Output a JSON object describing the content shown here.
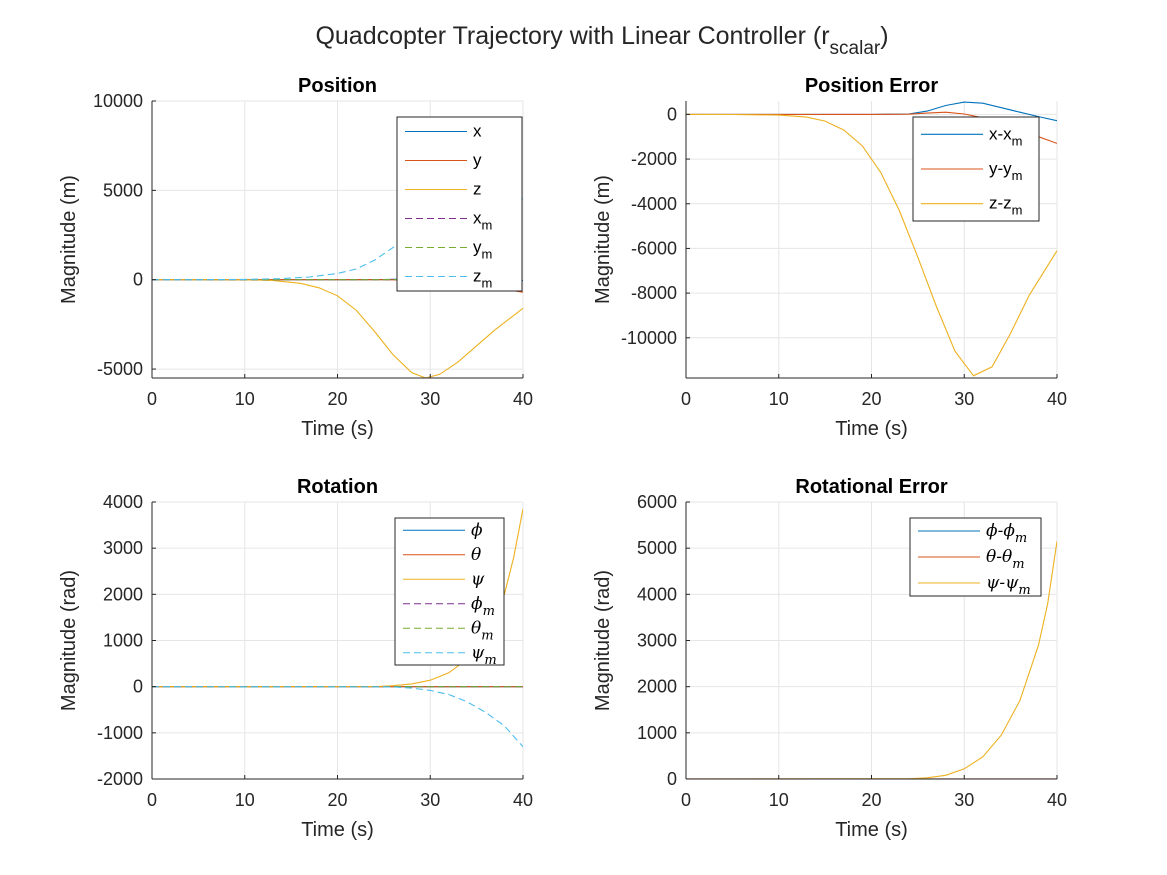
{
  "figure": {
    "title_main": "Quadcopter Trajectory with Linear Controller (r",
    "title_sub": "scalar",
    "title_close": ")"
  },
  "colors": {
    "blue": "#0072BD",
    "orange": "#D95319",
    "yellow": "#EDB120",
    "purple": "#7E2F8E",
    "green": "#77AC30",
    "cyan": "#4DBEEE"
  },
  "chart_data": [
    {
      "type": "line",
      "title": "Position",
      "xlabel": "Time (s)",
      "ylabel": "Magnitude (m)",
      "xlim": [
        0,
        40
      ],
      "ylim": [
        -5500,
        10000
      ],
      "xticks": [
        0,
        10,
        20,
        30,
        40
      ],
      "yticks": [
        -5000,
        0,
        5000,
        10000
      ],
      "grid": true,
      "legend_position": "top-right",
      "series": [
        {
          "name": "x",
          "color": "blue",
          "dash": false,
          "x": [
            0,
            20,
            25,
            27,
            29,
            31,
            33,
            35,
            37,
            40
          ],
          "y": [
            0,
            0,
            5,
            40,
            120,
            200,
            240,
            220,
            150,
            -50
          ]
        },
        {
          "name": "y",
          "color": "orange",
          "dash": false,
          "x": [
            0,
            20,
            25,
            28,
            31,
            34,
            37,
            40
          ],
          "y": [
            0,
            0,
            0,
            -20,
            -80,
            -250,
            -450,
            -700
          ]
        },
        {
          "name": "z",
          "color": "yellow",
          "dash": false,
          "x": [
            0,
            5,
            10,
            13,
            16,
            18,
            20,
            22,
            24,
            26,
            28,
            29.5,
            31,
            33,
            35,
            37,
            40
          ],
          "y": [
            0,
            0,
            -5,
            -40,
            -200,
            -450,
            -900,
            -1700,
            -2900,
            -4200,
            -5200,
            -5500,
            -5300,
            -4600,
            -3700,
            -2800,
            -1600
          ]
        },
        {
          "name": "x_m",
          "color": "purple",
          "dash": true,
          "x": [
            0,
            25,
            30,
            34,
            37,
            40
          ],
          "y": [
            0,
            0,
            20,
            60,
            120,
            200
          ]
        },
        {
          "name": "y_m",
          "color": "green",
          "dash": true,
          "x": [
            0,
            25,
            30,
            34,
            37,
            40
          ],
          "y": [
            0,
            0,
            50,
            150,
            300,
            500
          ]
        },
        {
          "name": "z_m",
          "color": "cyan",
          "dash": true,
          "x": [
            0,
            5,
            10,
            14,
            17,
            20,
            22,
            24,
            26,
            28,
            30,
            32,
            34,
            36,
            38,
            40
          ],
          "y": [
            0,
            3,
            15,
            60,
            150,
            350,
            600,
            1100,
            1800,
            2700,
            3700,
            4600,
            5300,
            5650,
            5400,
            4500
          ]
        }
      ]
    },
    {
      "type": "line",
      "title": "Position Error",
      "xlabel": "Time (s)",
      "ylabel": "Magnitude (m)",
      "xlim": [
        0,
        40
      ],
      "ylim": [
        -11800,
        600
      ],
      "xticks": [
        0,
        10,
        20,
        30,
        40
      ],
      "yticks": [
        -10000,
        -8000,
        -6000,
        -4000,
        -2000,
        0
      ],
      "grid": true,
      "legend_position": "top-right",
      "series": [
        {
          "name": "x-x_m",
          "color": "blue",
          "dash": false,
          "x": [
            0,
            20,
            24,
            26,
            28,
            30,
            32,
            34,
            36,
            38,
            40
          ],
          "y": [
            0,
            0,
            20,
            150,
            400,
            550,
            500,
            300,
            100,
            -100,
            -280
          ]
        },
        {
          "name": "y-y_m",
          "color": "orange",
          "dash": false,
          "x": [
            0,
            20,
            24,
            26,
            28,
            30,
            32,
            34,
            36,
            38,
            40
          ],
          "y": [
            0,
            0,
            10,
            60,
            100,
            20,
            -150,
            -400,
            -700,
            -1000,
            -1300
          ]
        },
        {
          "name": "z-z_m",
          "color": "yellow",
          "dash": false,
          "x": [
            0,
            5,
            10,
            13,
            15,
            17,
            19,
            21,
            23,
            25,
            27,
            29,
            31,
            33,
            35,
            37,
            40
          ],
          "y": [
            0,
            -5,
            -30,
            -120,
            -300,
            -700,
            -1400,
            -2600,
            -4300,
            -6400,
            -8600,
            -10600,
            -11700,
            -11300,
            -9800,
            -8100,
            -6100
          ]
        }
      ]
    },
    {
      "type": "line",
      "title": "Rotation",
      "xlabel": "Time (s)",
      "ylabel": "Magnitude (rad)",
      "xlim": [
        0,
        40
      ],
      "ylim": [
        -2000,
        4000
      ],
      "xticks": [
        0,
        10,
        20,
        30,
        40
      ],
      "yticks": [
        -2000,
        -1000,
        0,
        1000,
        2000,
        3000,
        4000
      ],
      "grid": true,
      "legend_position": "top-right",
      "series": [
        {
          "name": "ϕ",
          "color": "blue",
          "dash": false,
          "x": [
            0,
            40
          ],
          "y": [
            0,
            0
          ]
        },
        {
          "name": "θ",
          "color": "orange",
          "dash": false,
          "x": [
            0,
            40
          ],
          "y": [
            0,
            0
          ]
        },
        {
          "name": "ψ",
          "color": "yellow",
          "dash": false,
          "x": [
            0,
            24,
            26,
            28,
            30,
            32,
            34,
            36,
            38,
            39,
            40
          ],
          "y": [
            0,
            2,
            20,
            60,
            140,
            300,
            600,
            1100,
            2000,
            2800,
            3850
          ]
        },
        {
          "name": "ϕ_m",
          "color": "purple",
          "dash": true,
          "x": [
            0,
            40
          ],
          "y": [
            0,
            0
          ]
        },
        {
          "name": "θ_m",
          "color": "green",
          "dash": true,
          "x": [
            0,
            40
          ],
          "y": [
            0,
            0
          ]
        },
        {
          "name": "ψ_m",
          "color": "cyan",
          "dash": true,
          "x": [
            0,
            26,
            28,
            30,
            32,
            34,
            36,
            38,
            40
          ],
          "y": [
            0,
            -5,
            -30,
            -80,
            -170,
            -330,
            -560,
            -850,
            -1300
          ]
        }
      ]
    },
    {
      "type": "line",
      "title": "Rotational Error",
      "xlabel": "Time (s)",
      "ylabel": "Magnitude (rad)",
      "xlim": [
        0,
        40
      ],
      "ylim": [
        0,
        6000
      ],
      "xticks": [
        0,
        10,
        20,
        30,
        40
      ],
      "yticks": [
        0,
        1000,
        2000,
        3000,
        4000,
        5000,
        6000
      ],
      "grid": true,
      "legend_position": "top-right",
      "series": [
        {
          "name": "ϕ-ϕ_m",
          "color": "blue",
          "dash": false,
          "x": [
            0,
            40
          ],
          "y": [
            0,
            0
          ]
        },
        {
          "name": "θ-θ_m",
          "color": "orange",
          "dash": false,
          "x": [
            0,
            40
          ],
          "y": [
            3,
            3
          ]
        },
        {
          "name": "ψ-ψ_m",
          "color": "yellow",
          "dash": false,
          "x": [
            0,
            24,
            26,
            28,
            30,
            32,
            34,
            36,
            38,
            39,
            40
          ],
          "y": [
            0,
            5,
            25,
            80,
            220,
            480,
            950,
            1700,
            2900,
            3800,
            5150
          ]
        }
      ]
    }
  ]
}
